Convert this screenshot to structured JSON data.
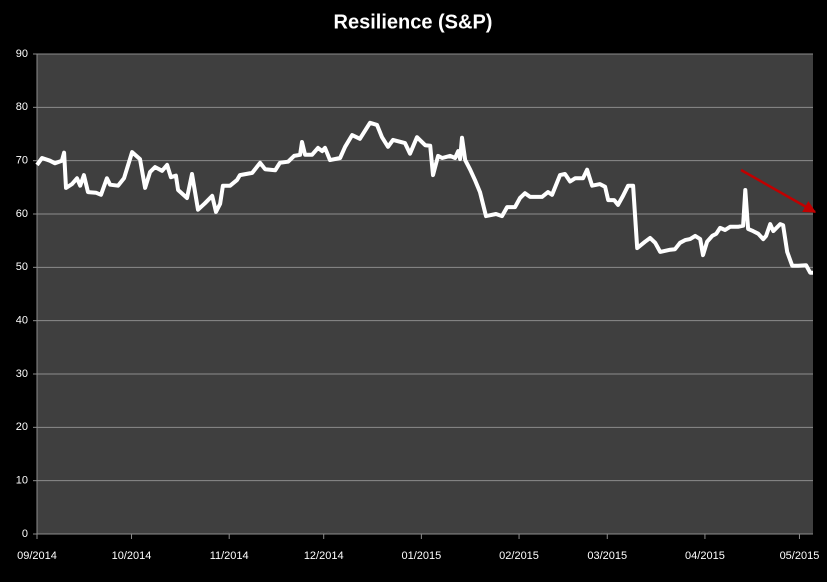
{
  "chart_data": {
    "type": "line",
    "title": "Resilience (S&P)",
    "color": "#ffffff",
    "grid": true,
    "x": [
      0,
      1.6,
      4.1,
      5.7,
      7.9,
      8.6,
      9.2,
      11.1,
      12.7,
      13.7,
      14.9,
      16.2,
      18.7,
      20.3,
      22.2,
      23.2,
      25.7,
      27.6,
      30.2,
      32.7,
      34.3,
      35.9,
      37.5,
      39.7,
      41.3,
      42.5,
      44.1,
      44.8,
      47.6,
      49.2,
      51.1,
      53.3,
      55.6,
      56.8,
      58.1,
      59,
      61.3,
      63.5,
      64.4,
      68.3,
      70.8,
      72.4,
      75.6,
      77.1,
      79.7,
      81.6,
      83.5,
      84.1,
      85.1,
      87.3,
      89.2,
      90.5,
      91.4,
      93,
      96.2,
      97.8,
      100,
      102.5,
      105.7,
      107.9,
      109.5,
      111.4,
      113,
      116.8,
      118.4,
      120.6,
      123.2,
      124.8,
      125.7,
      127.3,
      128.6,
      131.1,
      132.7,
      133.7,
      134.3,
      134.9,
      135.9,
      137.5,
      139,
      140.6,
      142.5,
      145.7,
      147.6,
      149.2,
      151.7,
      153.3,
      154.9,
      156.5,
      160.3,
      162.2,
      163.5,
      166,
      167.6,
      169.2,
      170.8,
      173.3,
      174.6,
      176.2,
      178.7,
      180.3,
      181.3,
      183.2,
      184.4,
      186,
      187.6,
      189.2,
      190.5,
      193,
      194.6,
      196.2,
      197.8,
      201,
      202.5,
      204.1,
      205.7,
      207.3,
      208.9,
      210.5,
      211.4,
      212.7,
      214.3,
      215.6,
      216.8,
      218.4,
      220,
      222.5,
      224.1,
      224.8,
      225.7,
      227.3,
      228.9,
      230.5,
      231.4,
      232.7,
      233.7,
      235.9,
      236.8,
      238.1,
      239.7,
      241.6,
      244.1,
      245.4,
      246.3
    ],
    "values": [
      69.2,
      70.5,
      70,
      69.5,
      70,
      71.5,
      64.9,
      65.6,
      66.7,
      65.3,
      67.3,
      64.1,
      64,
      63.6,
      66.7,
      65.5,
      65.3,
      66.7,
      71.6,
      70.3,
      64.9,
      67.9,
      68.8,
      68.1,
      69.2,
      66.9,
      67.2,
      64.5,
      63,
      67.5,
      60.8,
      62,
      63.4,
      60.4,
      61.9,
      65.3,
      65.3,
      66.4,
      67.3,
      67.7,
      69.6,
      68.4,
      68.2,
      69.6,
      69.8,
      70.9,
      71.1,
      73.5,
      71.1,
      71.1,
      72.4,
      71.8,
      72.4,
      70.1,
      70.5,
      72.6,
      74.8,
      74.1,
      77.1,
      76.7,
      74.4,
      72.6,
      73.9,
      73.3,
      71.3,
      74.4,
      72.9,
      72.8,
      67.3,
      70.9,
      70.5,
      70.9,
      70.5,
      71.8,
      70.3,
      74.3,
      70.1,
      68.3,
      66.4,
      64.1,
      59.6,
      60,
      59.6,
      61.3,
      61.3,
      63,
      63.9,
      63.2,
      63.2,
      64.1,
      63.6,
      67.3,
      67.5,
      66.1,
      66.7,
      66.7,
      68.3,
      65.3,
      65.6,
      65.1,
      62.6,
      62.6,
      61.7,
      63.4,
      65.3,
      65.3,
      53.6,
      54.8,
      55.5,
      54.6,
      52.9,
      53.3,
      53.4,
      54.6,
      55.1,
      55.3,
      55.9,
      55.3,
      52.3,
      54.8,
      55.9,
      56.3,
      57.4,
      57,
      57.6,
      57.6,
      57.8,
      64.5,
      57.2,
      56.8,
      56.3,
      55.3,
      55.9,
      58.1,
      56.8,
      58.1,
      57.9,
      52.9,
      50.3,
      50.3,
      50.4,
      49,
      49
    ],
    "xlim": [
      0,
      246.3
    ],
    "xticks": [
      {
        "value": 0,
        "label": "09/2014"
      },
      {
        "value": 30,
        "label": "10/2014"
      },
      {
        "value": 61,
        "label": "11/2014"
      },
      {
        "value": 91,
        "label": "12/2014"
      },
      {
        "value": 122,
        "label": "01/2015"
      },
      {
        "value": 153,
        "label": "02/2015"
      },
      {
        "value": 181,
        "label": "03/2015"
      },
      {
        "value": 212,
        "label": "04/2015"
      },
      {
        "value": 242,
        "label": "05/2015"
      }
    ],
    "ylim": [
      0,
      90
    ],
    "yticks": [
      0,
      10,
      20,
      30,
      40,
      50,
      60,
      70,
      80,
      90
    ]
  }
}
